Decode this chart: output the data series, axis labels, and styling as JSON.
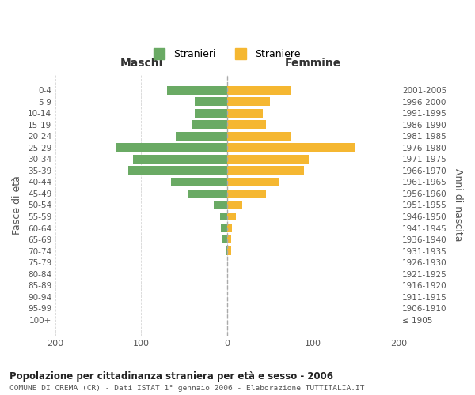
{
  "age_groups": [
    "100+",
    "95-99",
    "90-94",
    "85-89",
    "80-84",
    "75-79",
    "70-74",
    "65-69",
    "60-64",
    "55-59",
    "50-54",
    "45-49",
    "40-44",
    "35-39",
    "30-34",
    "25-29",
    "20-24",
    "15-19",
    "10-14",
    "5-9",
    "0-4"
  ],
  "birth_years": [
    "≤ 1905",
    "1906-1910",
    "1911-1915",
    "1916-1920",
    "1921-1925",
    "1926-1930",
    "1931-1935",
    "1936-1940",
    "1941-1945",
    "1946-1950",
    "1951-1955",
    "1956-1960",
    "1961-1965",
    "1966-1970",
    "1971-1975",
    "1976-1980",
    "1981-1985",
    "1986-1990",
    "1991-1995",
    "1996-2000",
    "2001-2005"
  ],
  "males": [
    0,
    0,
    0,
    0,
    0,
    0,
    2,
    5,
    7,
    8,
    15,
    45,
    65,
    115,
    110,
    130,
    60,
    40,
    38,
    38,
    70
  ],
  "females": [
    0,
    0,
    0,
    0,
    0,
    0,
    5,
    5,
    6,
    10,
    18,
    45,
    60,
    90,
    95,
    150,
    75,
    45,
    42,
    50,
    75
  ],
  "male_color": "#6aaa64",
  "female_color": "#f5b731",
  "background_color": "#ffffff",
  "grid_color": "#cccccc",
  "title": "Popolazione per cittadinanza straniera per età e sesso - 2006",
  "subtitle": "COMUNE DI CREMA (CR) - Dati ISTAT 1° gennaio 2006 - Elaborazione TUTTITALIA.IT",
  "xlabel_left": "Maschi",
  "xlabel_right": "Femmine",
  "ylabel_left": "Fasce di età",
  "ylabel_right": "Anni di nascita",
  "legend_male": "Stranieri",
  "legend_female": "Straniere",
  "xlim": [
    -200,
    200
  ],
  "xticks": [
    -200,
    -100,
    0,
    100,
    200
  ],
  "xticklabels": [
    "200",
    "100",
    "0",
    "100",
    "200"
  ]
}
